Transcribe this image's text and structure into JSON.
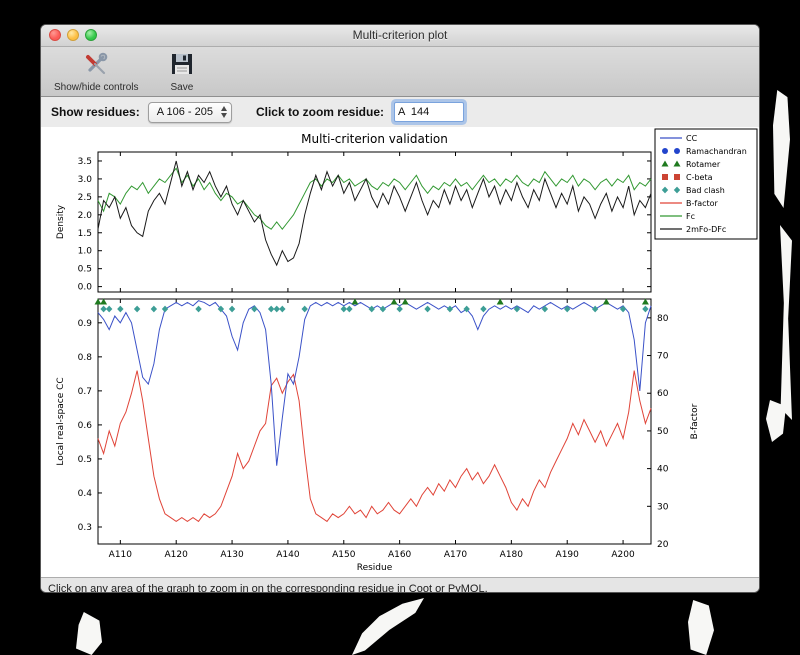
{
  "window": {
    "title": "Multi-criterion plot"
  },
  "toolbar": {
    "show_hide_label": "Show/hide controls",
    "save_label": "Save"
  },
  "controls": {
    "show_residues_label": "Show residues:",
    "residue_range_value": "A 106 - 205",
    "zoom_label": "Click to zoom residue:",
    "zoom_value": "A  144"
  },
  "status": "Click on any area of the graph to zoom in on the corresponding residue in Coot or PyMOL.",
  "chart_data": {
    "type": "line",
    "title": "Multi-criterion validation",
    "x_start": 106,
    "x_end": 205,
    "x_label": "Residue",
    "x_ticks": [
      110,
      120,
      130,
      140,
      150,
      160,
      170,
      180,
      190,
      200
    ],
    "x_tick_labels": [
      "A110",
      "A120",
      "A130",
      "A140",
      "A150",
      "A160",
      "A170",
      "A180",
      "A190",
      "A200"
    ],
    "top": {
      "ylabel": "Density",
      "ylim": [
        -0.15,
        3.75
      ],
      "yticks": [
        0.0,
        0.5,
        1.0,
        1.5,
        2.0,
        2.5,
        3.0,
        3.5
      ],
      "series": [
        {
          "name": "Fc",
          "color": "#339933",
          "values": [
            2.4,
            2.1,
            2.6,
            2.5,
            2.3,
            2.6,
            2.8,
            2.7,
            2.9,
            2.6,
            2.8,
            3.0,
            2.9,
            3.1,
            3.3,
            2.9,
            3.1,
            2.8,
            3.0,
            2.7,
            2.9,
            2.6,
            2.4,
            2.6,
            2.5,
            2.3,
            2.4,
            2.2,
            2.0,
            1.9,
            1.7,
            1.6,
            1.8,
            1.6,
            1.8,
            2.0,
            2.3,
            2.6,
            2.9,
            3.0,
            2.8,
            3.0,
            2.9,
            3.1,
            2.9,
            3.0,
            2.8,
            2.9,
            3.0,
            2.8,
            2.7,
            2.9,
            2.8,
            3.0,
            2.9,
            2.7,
            2.9,
            3.1,
            2.8,
            2.6,
            2.8,
            2.7,
            2.9,
            2.8,
            3.0,
            2.8,
            2.9,
            2.7,
            2.9,
            3.1,
            2.9,
            3.0,
            2.8,
            3.0,
            2.9,
            3.1,
            2.9,
            2.8,
            3.0,
            2.9,
            3.2,
            3.0,
            2.8,
            3.0,
            2.9,
            3.1,
            2.8,
            3.0,
            2.9,
            2.7,
            2.9,
            3.0,
            2.8,
            3.0,
            2.9,
            3.1,
            2.7,
            2.9,
            2.8,
            3.0
          ]
        },
        {
          "name": "2mFo-DFc",
          "color": "#1a1a1a",
          "values": [
            1.6,
            2.4,
            2.2,
            2.5,
            1.9,
            2.2,
            1.7,
            1.5,
            1.4,
            2.1,
            2.4,
            2.6,
            2.3,
            2.9,
            3.5,
            2.8,
            3.2,
            2.7,
            3.1,
            2.9,
            3.2,
            2.8,
            2.5,
            2.8,
            2.3,
            2.0,
            2.4,
            2.1,
            1.8,
            2.0,
            1.3,
            0.9,
            0.6,
            1.0,
            0.7,
            0.8,
            1.2,
            2.0,
            2.6,
            3.1,
            2.7,
            3.2,
            2.8,
            3.1,
            2.6,
            2.9,
            2.4,
            2.7,
            3.0,
            2.5,
            2.2,
            2.6,
            2.3,
            2.8,
            2.5,
            2.1,
            2.5,
            2.9,
            2.4,
            2.0,
            2.4,
            2.2,
            2.7,
            2.3,
            2.8,
            2.4,
            2.7,
            2.2,
            2.6,
            3.0,
            2.5,
            2.8,
            2.3,
            2.7,
            2.4,
            2.9,
            2.5,
            2.2,
            2.7,
            2.4,
            3.0,
            2.6,
            2.2,
            2.6,
            2.3,
            2.8,
            2.1,
            2.5,
            2.3,
            1.9,
            2.3,
            2.6,
            2.1,
            2.5,
            2.2,
            2.8,
            2.0,
            2.4,
            2.2,
            2.6
          ]
        }
      ]
    },
    "bottom": {
      "ylabel_left": "Local real-space CC",
      "ylabel_left_color": "#3b52c8",
      "ylabel_right": "B-factor",
      "ylabel_right_color": "#e04438",
      "ylim_left": [
        0.25,
        0.97
      ],
      "yticks_left": [
        0.3,
        0.4,
        0.5,
        0.6,
        0.7,
        0.8,
        0.9
      ],
      "ylim_right": [
        20,
        85
      ],
      "yticks_right": [
        20,
        30,
        40,
        50,
        60,
        70,
        80
      ],
      "series_left": {
        "name": "CC",
        "color": "#3b52c8",
        "values": [
          0.93,
          0.91,
          0.88,
          0.92,
          0.9,
          0.93,
          0.9,
          0.82,
          0.74,
          0.72,
          0.78,
          0.88,
          0.94,
          0.95,
          0.96,
          0.95,
          0.96,
          0.95,
          0.965,
          0.96,
          0.95,
          0.96,
          0.94,
          0.92,
          0.86,
          0.82,
          0.9,
          0.94,
          0.95,
          0.93,
          0.88,
          0.72,
          0.48,
          0.62,
          0.75,
          0.72,
          0.8,
          0.91,
          0.95,
          0.96,
          0.95,
          0.96,
          0.95,
          0.96,
          0.95,
          0.96,
          0.95,
          0.96,
          0.95,
          0.94,
          0.95,
          0.94,
          0.95,
          0.96,
          0.95,
          0.96,
          0.95,
          0.94,
          0.95,
          0.96,
          0.95,
          0.94,
          0.95,
          0.94,
          0.95,
          0.93,
          0.94,
          0.92,
          0.88,
          0.92,
          0.94,
          0.95,
          0.94,
          0.95,
          0.94,
          0.95,
          0.94,
          0.93,
          0.95,
          0.94,
          0.95,
          0.96,
          0.95,
          0.94,
          0.95,
          0.94,
          0.95,
          0.96,
          0.95,
          0.94,
          0.95,
          0.96,
          0.95,
          0.94,
          0.95,
          0.93,
          0.85,
          0.7,
          0.9,
          0.95
        ]
      },
      "series_right": {
        "name": "B-factor",
        "color": "#e04438",
        "values": [
          48,
          44,
          50,
          46,
          52,
          55,
          60,
          66,
          58,
          48,
          38,
          32,
          28,
          27,
          26,
          27,
          26,
          27,
          26,
          28,
          27,
          28,
          30,
          34,
          38,
          44,
          40,
          42,
          46,
          50,
          52,
          62,
          64,
          60,
          63,
          65,
          58,
          44,
          32,
          28,
          27,
          26,
          28,
          27,
          28,
          30,
          28,
          29,
          27,
          30,
          28,
          29,
          31,
          29,
          28,
          30,
          32,
          30,
          33,
          35,
          33,
          36,
          34,
          37,
          35,
          38,
          40,
          37,
          39,
          36,
          38,
          41,
          38,
          35,
          31,
          29,
          32,
          30,
          34,
          37,
          35,
          39,
          42,
          45,
          48,
          52,
          49,
          53,
          50,
          47,
          50,
          46,
          49,
          52,
          48,
          55,
          66,
          58,
          52,
          56
        ]
      },
      "markers": [
        {
          "name": "Rotamer",
          "shape": "triangle",
          "color": "#1f7a1f",
          "row": 0,
          "residues": [
            106,
            107,
            152,
            159,
            161,
            178,
            197,
            204
          ]
        },
        {
          "name": "Bad clash",
          "shape": "diamond",
          "color": "#3d9e96",
          "row": 1,
          "residues": [
            107,
            108,
            110,
            113,
            116,
            118,
            124,
            128,
            130,
            134,
            137,
            138,
            139,
            143,
            150,
            151,
            155,
            157,
            160,
            165,
            169,
            172,
            175,
            181,
            186,
            190,
            195,
            200,
            204
          ]
        },
        {
          "name": "Ramachandran",
          "shape": "circle",
          "color": "#2244cc",
          "row": 1,
          "residues": []
        },
        {
          "name": "C-beta",
          "shape": "square",
          "color": "#cc4433",
          "row": 0,
          "residues": []
        }
      ]
    },
    "legend": [
      {
        "label": "CC",
        "type": "line",
        "color": "#3b52c8"
      },
      {
        "label": "Ramachandran",
        "type": "circle",
        "color": "#2244cc"
      },
      {
        "label": "Rotamer",
        "type": "triangle",
        "color": "#1f7a1f"
      },
      {
        "label": "C-beta",
        "type": "square",
        "color": "#cc4433"
      },
      {
        "label": "Bad clash",
        "type": "diamond",
        "color": "#3d9e96"
      },
      {
        "label": "B-factor",
        "type": "line",
        "color": "#e04438"
      },
      {
        "label": "Fc",
        "type": "line",
        "color": "#339933"
      },
      {
        "label": "2mFo-DFc",
        "type": "line",
        "color": "#1a1a1a"
      }
    ]
  }
}
